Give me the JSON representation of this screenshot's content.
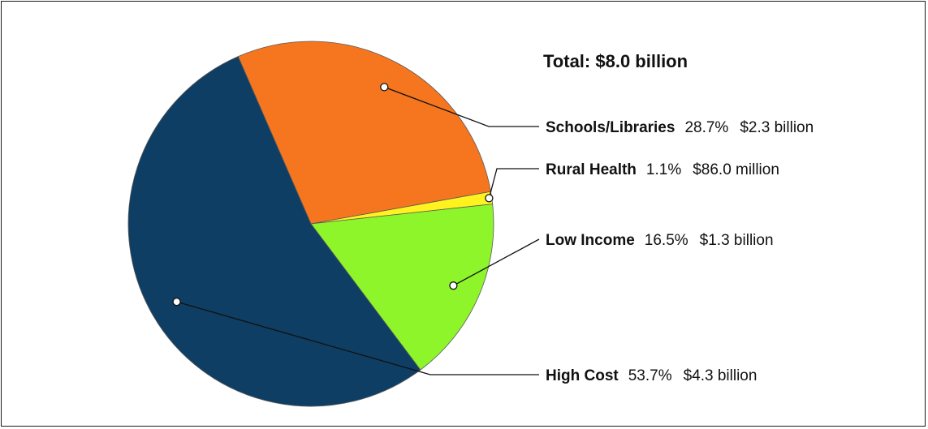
{
  "chart_data": {
    "type": "pie",
    "title": "Total: $8.0 billion",
    "start_angle_deg": -113.5,
    "slices": [
      {
        "name": "Schools/Libraries",
        "percent_label": "28.7%",
        "amount_label": "$2.3 billion",
        "value": 28.7,
        "color": "#F5761E"
      },
      {
        "name": "Rural Health",
        "percent_label": "1.1%",
        "amount_label": "$86.0 million",
        "value": 1.1,
        "color": "#FFF21E"
      },
      {
        "name": "Low Income",
        "percent_label": "16.5%",
        "amount_label": "$1.3 billion",
        "value": 16.5,
        "color": "#8DF52A"
      },
      {
        "name": "High Cost",
        "percent_label": "53.7%",
        "amount_label": "$4.3 billion",
        "value": 53.7,
        "color": "#0E3E63"
      }
    ]
  }
}
